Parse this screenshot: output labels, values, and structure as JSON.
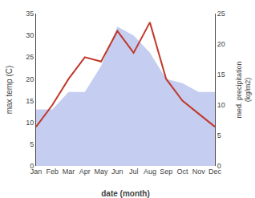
{
  "chart_data": {
    "type": "line",
    "categories": [
      "Jan",
      "Feb",
      "Mar",
      "Apr",
      "May",
      "Jun",
      "Jul",
      "Aug",
      "Sep",
      "Oct",
      "Nov",
      "Dec"
    ],
    "series": [
      {
        "type": "area",
        "color": "#c5cdf0",
        "values": [
          13,
          13,
          17,
          17,
          23,
          32,
          30,
          26,
          20,
          19,
          17,
          17
        ]
      },
      {
        "type": "line",
        "color": "#c0392b",
        "values": [
          9,
          14,
          20,
          25,
          24,
          31,
          26,
          33,
          20,
          15,
          12,
          9
        ]
      }
    ],
    "xlabel": "date (month)",
    "ylabel": "max temp (C)",
    "y2label": "med. precipitation\n(kg/m2)",
    "ylim": [
      0,
      35
    ],
    "yticks": [
      0,
      5,
      10,
      15,
      20,
      25,
      30,
      35
    ],
    "y2lim": [
      0,
      25
    ],
    "y2ticks": [
      0,
      5,
      10,
      15,
      20,
      25
    ],
    "grid": false
  }
}
